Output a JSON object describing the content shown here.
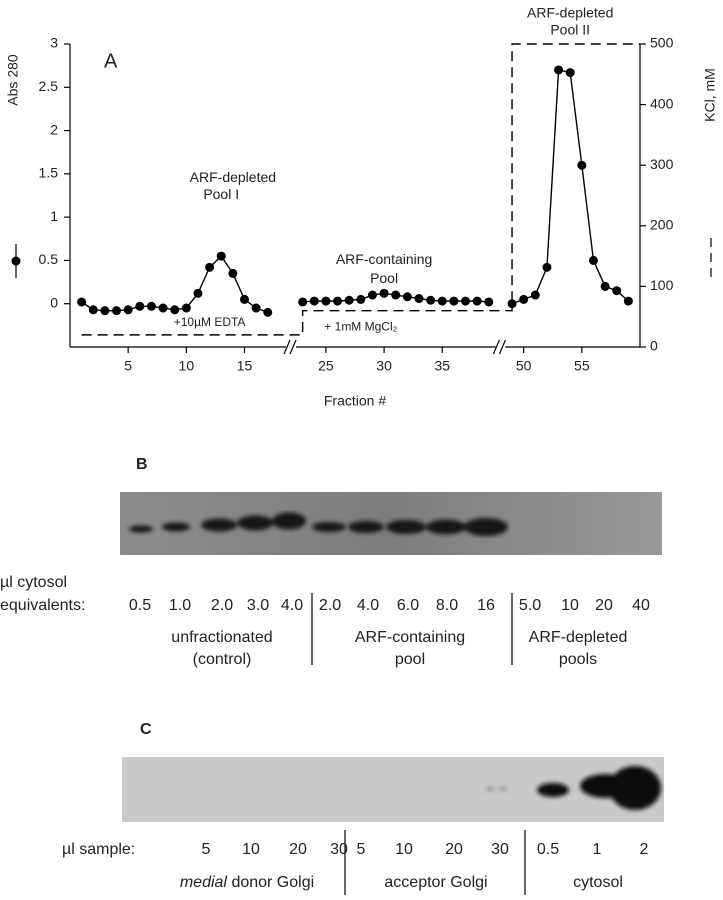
{
  "chart_data": {
    "type": "line",
    "panel_label": "A",
    "ylabel": "Abs 280",
    "y2label": "KCl, mM",
    "xlabel": "Fraction #",
    "xlim": [
      0,
      60
    ],
    "axis_breaks": [
      [
        19,
        22
      ],
      [
        40,
        48
      ]
    ],
    "xticks": [
      5,
      10,
      15,
      25,
      30,
      35,
      50,
      55
    ],
    "ylim": [
      -0.5,
      3
    ],
    "yticks": [
      0,
      0.5,
      1,
      1.5,
      2,
      2.5,
      3
    ],
    "y2lim": [
      0,
      500
    ],
    "y2ticks": [
      0,
      100,
      200,
      300,
      400,
      500
    ],
    "series": [
      {
        "name": "Abs 280",
        "color": "#000",
        "marker": "circle",
        "x": [
          1,
          2,
          3,
          4,
          5,
          6,
          7,
          8,
          9,
          10,
          11,
          12,
          13,
          14,
          15,
          16,
          17,
          18,
          23,
          24,
          25,
          26,
          27,
          28,
          29,
          30,
          31,
          32,
          33,
          34,
          35,
          36,
          37,
          38,
          39,
          40,
          49,
          50,
          51,
          52,
          53,
          54,
          55,
          56,
          57,
          58,
          59
        ],
        "values": [
          0.02,
          -0.07,
          -0.08,
          -0.08,
          -0.07,
          -0.03,
          -0.03,
          -0.05,
          -0.07,
          -0.05,
          0.12,
          0.42,
          0.55,
          0.35,
          0.05,
          -0.05,
          -0.1,
          null,
          0.02,
          0.03,
          0.03,
          0.03,
          0.04,
          0.05,
          0.1,
          0.12,
          0.1,
          0.08,
          0.06,
          0.04,
          0.03,
          0.03,
          0.03,
          0.03,
          0.02,
          null,
          0,
          0.05,
          0.1,
          0.42,
          2.7,
          2.67,
          1.6,
          0.5,
          0.2,
          0.15,
          0.03
        ]
      },
      {
        "name": "KCl, mM",
        "color": "#000",
        "style": "dashed",
        "axis": "y2",
        "x": [
          1,
          23,
          23,
          49,
          49,
          60
        ],
        "values": [
          20,
          20,
          60,
          60,
          500,
          500
        ]
      }
    ],
    "annotations": [
      {
        "text": "ARF-depleted",
        "x": 14,
        "y": 1.45
      },
      {
        "text": "Pool I",
        "x": 13,
        "y": 1.25
      },
      {
        "text": "ARF-containing",
        "x": 30,
        "y": 0.5
      },
      {
        "text": "Pool",
        "x": 30,
        "y": 0.28
      },
      {
        "text": "ARF-depleted",
        "x": 54,
        "y": 3.35
      },
      {
        "text": "Pool II",
        "x": 54,
        "y": 3.15
      },
      {
        "text": "+10µM EDTA",
        "x": 12,
        "y": -0.22
      },
      {
        "text": "+ 1mM MgCl₂",
        "x": 28,
        "y": -0.27
      }
    ]
  },
  "panel_b": {
    "label": "B",
    "row_label": [
      "µl cytosol",
      "equivalents:"
    ],
    "lanes": [
      "0.5",
      "1.0",
      "2.0",
      "3.0",
      "4.0",
      "2.0",
      "4.0",
      "6.0",
      "8.0",
      "16",
      "5.0",
      "10",
      "20",
      "40"
    ],
    "groups": [
      [
        "unfractionated",
        "(control)"
      ],
      [
        "ARF-containing",
        "pool"
      ],
      [
        "ARF-depleted",
        "pools"
      ]
    ]
  },
  "panel_c": {
    "label": "C",
    "row_label": "µl sample:",
    "lanes": [
      "5",
      "10",
      "20",
      "30",
      "5",
      "10",
      "20",
      "30",
      "0.5",
      "1",
      "2"
    ],
    "groups": [
      {
        "italic": "medial",
        "text": "donor Golgi"
      },
      {
        "text": "acceptor Golgi"
      },
      {
        "text": "cytosol"
      }
    ]
  }
}
